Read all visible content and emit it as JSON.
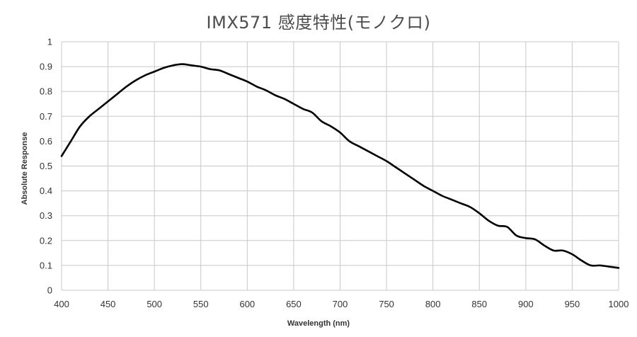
{
  "chart_data": {
    "type": "line",
    "title": "IMX571 感度特性(モノクロ)",
    "xlabel": "Wavelength (nm)",
    "ylabel": "Absolute Response",
    "xlim": [
      400,
      1000
    ],
    "ylim": [
      0,
      1
    ],
    "x_ticks": [
      "400",
      "450",
      "500",
      "550",
      "600",
      "650",
      "700",
      "750",
      "800",
      "850",
      "900",
      "950",
      "1000"
    ],
    "y_ticks": [
      "0",
      "0.1",
      "0.2",
      "0.3",
      "0.4",
      "0.5",
      "0.6",
      "0.7",
      "0.8",
      "0.9",
      "1"
    ],
    "grid": true,
    "legend": "none",
    "series": [
      {
        "color": "#000000",
        "x": [
          400,
          410,
          420,
          430,
          440,
          450,
          460,
          470,
          480,
          490,
          500,
          510,
          520,
          530,
          540,
          550,
          560,
          570,
          580,
          590,
          600,
          610,
          620,
          630,
          640,
          650,
          660,
          670,
          680,
          690,
          700,
          710,
          720,
          730,
          740,
          750,
          760,
          770,
          780,
          790,
          800,
          810,
          820,
          830,
          840,
          850,
          860,
          870,
          880,
          890,
          900,
          910,
          920,
          930,
          940,
          950,
          960,
          970,
          980,
          990,
          1000
        ],
        "y": [
          0.54,
          0.6,
          0.66,
          0.7,
          0.73,
          0.76,
          0.79,
          0.82,
          0.845,
          0.865,
          0.88,
          0.895,
          0.905,
          0.91,
          0.905,
          0.9,
          0.89,
          0.885,
          0.87,
          0.855,
          0.84,
          0.82,
          0.805,
          0.785,
          0.77,
          0.75,
          0.73,
          0.715,
          0.68,
          0.66,
          0.635,
          0.6,
          0.58,
          0.56,
          0.54,
          0.52,
          0.495,
          0.47,
          0.445,
          0.42,
          0.4,
          0.38,
          0.365,
          0.35,
          0.335,
          0.31,
          0.28,
          0.26,
          0.255,
          0.22,
          0.21,
          0.205,
          0.18,
          0.16,
          0.16,
          0.145,
          0.12,
          0.1,
          0.1,
          0.095,
          0.09
        ]
      }
    ]
  }
}
